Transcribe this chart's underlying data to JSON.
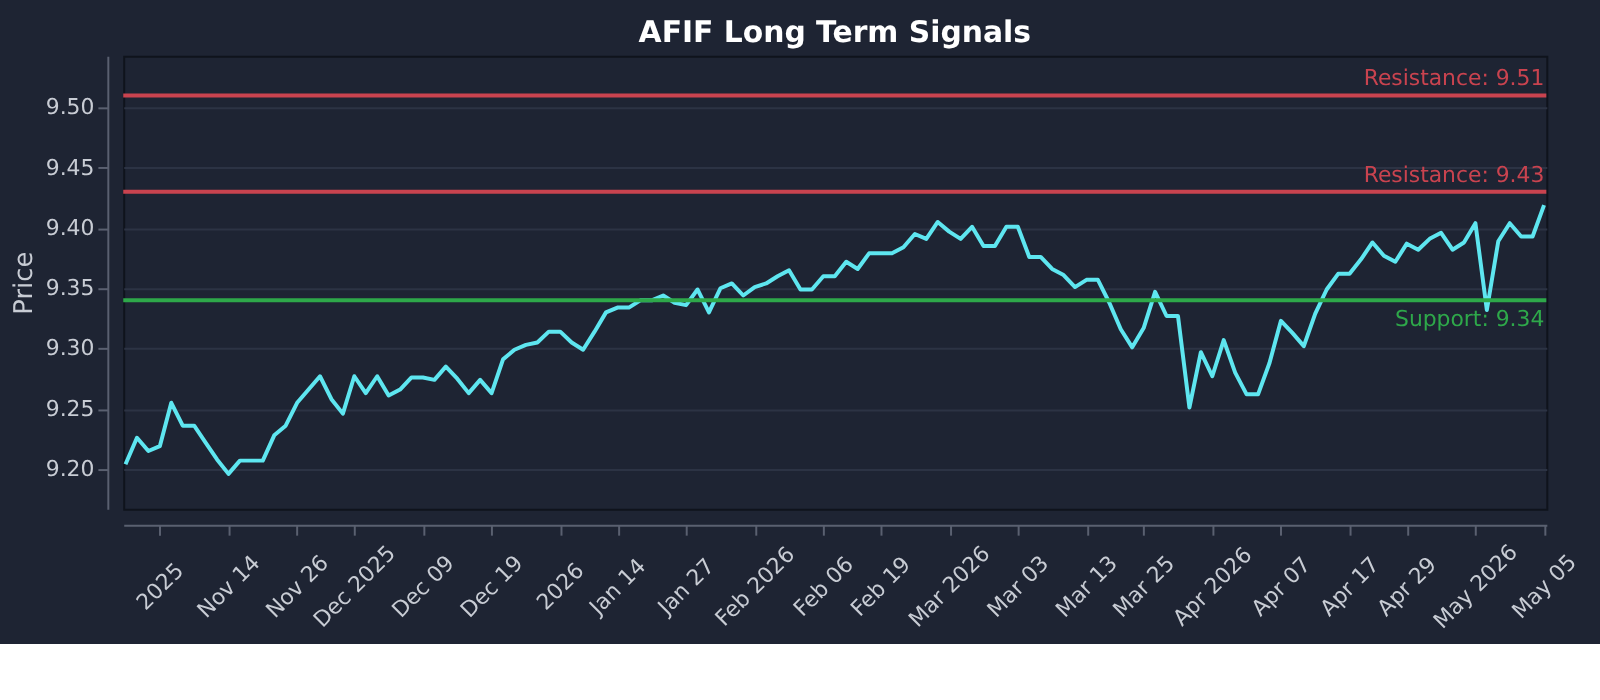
{
  "chart_data": {
    "type": "line",
    "title": "AFIF Long Term Signals",
    "ylabel": "Price",
    "categories": [
      null,
      null,
      null,
      "2025",
      null,
      null,
      null,
      null,
      null,
      "Nov 14",
      null,
      null,
      null,
      null,
      null,
      "Nov 26",
      null,
      null,
      null,
      null,
      "Dec 2025",
      null,
      null,
      null,
      null,
      null,
      "Dec 09",
      null,
      null,
      null,
      null,
      null,
      "Dec 19",
      null,
      null,
      null,
      null,
      null,
      "2026",
      null,
      null,
      null,
      null,
      "Jan 14",
      null,
      null,
      null,
      null,
      null,
      "Jan 27",
      null,
      null,
      null,
      null,
      null,
      "Feb 2026",
      null,
      null,
      null,
      null,
      null,
      "Feb 06",
      null,
      null,
      null,
      null,
      "Feb 19",
      null,
      null,
      null,
      null,
      null,
      "Mar 2026",
      null,
      null,
      null,
      null,
      null,
      "Mar 03",
      null,
      null,
      null,
      null,
      null,
      "Mar 13",
      null,
      null,
      null,
      null,
      "Mar 25",
      null,
      null,
      null,
      null,
      null,
      "Apr 2026",
      null,
      null,
      null,
      null,
      null,
      "Apr 07",
      null,
      null,
      null,
      null,
      null,
      "Apr 17",
      null,
      null,
      null,
      null,
      "Apr 29",
      null,
      null,
      null,
      null,
      null,
      "May 2026",
      null,
      null,
      null,
      null,
      null,
      "May 05"
    ],
    "series": [
      {
        "color": "#5ee6f0",
        "values": [
          9.204,
          9.226,
          9.215,
          9.219,
          9.255,
          9.236,
          9.236,
          9.222,
          9.208,
          9.196,
          9.207,
          9.207,
          9.207,
          9.228,
          9.236,
          9.255,
          9.266,
          9.277,
          9.258,
          9.246,
          9.277,
          9.263,
          9.277,
          9.261,
          9.266,
          9.276,
          9.276,
          9.274,
          9.285,
          9.275,
          9.263,
          9.274,
          9.263,
          9.291,
          9.299,
          9.303,
          9.305,
          9.314,
          9.314,
          9.305,
          9.299,
          9.314,
          9.33,
          9.334,
          9.334,
          9.34,
          9.34,
          9.344,
          9.338,
          9.336,
          9.349,
          9.33,
          9.35,
          9.354,
          9.344,
          9.351,
          9.354,
          9.36,
          9.365,
          9.349,
          9.349,
          9.36,
          9.36,
          9.372,
          9.366,
          9.379,
          9.379,
          9.379,
          9.384,
          9.395,
          9.391,
          9.405,
          9.397,
          9.391,
          9.401,
          9.385,
          9.385,
          9.401,
          9.401,
          9.376,
          9.376,
          9.366,
          9.361,
          9.351,
          9.357,
          9.357,
          9.338,
          9.316,
          9.301,
          9.317,
          9.347,
          9.327,
          9.327,
          9.251,
          9.297,
          9.277,
          9.307,
          9.28,
          9.262,
          9.262,
          9.288,
          9.323,
          9.313,
          9.302,
          9.329,
          9.349,
          9.362,
          9.362,
          9.374,
          9.388,
          9.377,
          9.372,
          9.387,
          9.382,
          9.391,
          9.396,
          9.382,
          9.388,
          9.404,
          9.332,
          9.389,
          9.404,
          9.393,
          9.393,
          9.419
        ]
      }
    ],
    "ylim": [
      9.167,
      9.543
    ],
    "yticks": [
      {
        "value": 9.2,
        "label": "9.20"
      },
      9.25,
      {
        "value": 9.3,
        "label": "9.30"
      },
      9.35,
      {
        "value": 9.4,
        "label": "9.40"
      },
      9.45,
      {
        "value": 9.5,
        "label": "9.50"
      }
    ],
    "grid": "y",
    "legend": false,
    "line_style": "solid",
    "marker": "none",
    "ref_lines": [
      {
        "axis": "y",
        "value": 9.51,
        "label": "Resistance: 9.51",
        "color": "#c9434f"
      },
      {
        "axis": "y",
        "value": 9.43,
        "label": "Resistance: 9.43",
        "color": "#c9434f"
      },
      {
        "axis": "y",
        "value": 9.34,
        "label": "Support: 9.34",
        "color": "#2ea84a"
      }
    ]
  }
}
